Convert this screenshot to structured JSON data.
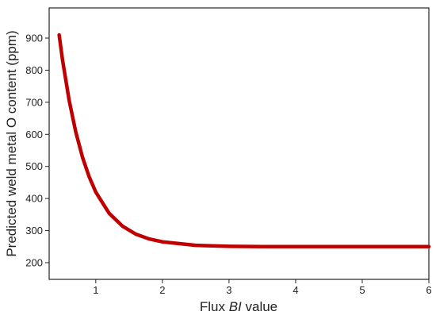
{
  "chart_data": {
    "type": "line",
    "x_label_parts": [
      "Flux ",
      "BI",
      " value"
    ],
    "y_label": "Predicted weld metal O content (ppm)",
    "x": [
      0.45,
      0.5,
      0.6,
      0.7,
      0.8,
      0.9,
      1.0,
      1.2,
      1.4,
      1.6,
      1.8,
      2.0,
      2.5,
      3.0,
      3.5,
      4.0,
      5.0,
      6.0
    ],
    "series": [
      {
        "color": "#c00000",
        "values": [
          910,
          833,
          706,
          607,
          529,
          468,
          420,
          354,
          314,
          289,
          274,
          265,
          254,
          251,
          250,
          250,
          250,
          250
        ]
      }
    ],
    "xlim": [
      0.3,
      6
    ],
    "xticks": [
      1,
      2,
      3,
      4,
      5,
      6
    ],
    "ylim": [
      148,
      994
    ],
    "yticks": [
      200,
      300,
      400,
      500,
      600,
      700,
      800,
      900
    ]
  }
}
